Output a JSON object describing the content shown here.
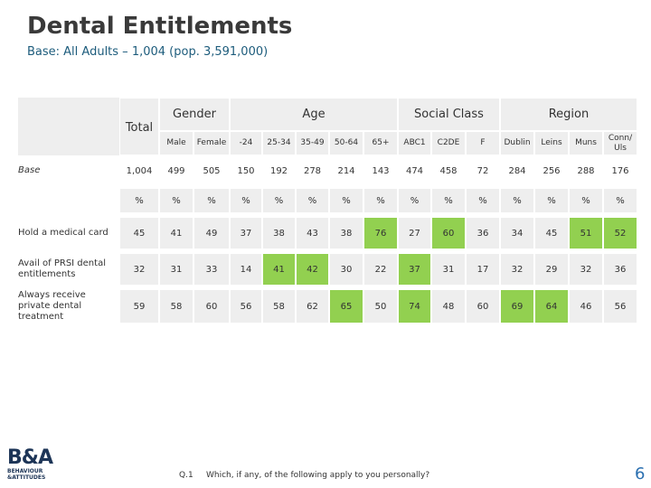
{
  "header": {
    "title": "Dental Entitlements",
    "subtitle": "Base: All Adults – 1,004 (pop. 3,591,000)"
  },
  "table": {
    "total_label": "Total",
    "groups": [
      {
        "label": "Gender",
        "span": 2
      },
      {
        "label": "Age",
        "span": 5
      },
      {
        "label": "Social Class",
        "span": 3
      },
      {
        "label": "Region",
        "span": 4
      }
    ],
    "columns": [
      "Male",
      "Female",
      "-24",
      "25-34",
      "35-49",
      "50-64",
      "65+",
      "ABC1",
      "C2DE",
      "F",
      "Dublin",
      "Leins",
      "Muns",
      "Conn/ Uls"
    ],
    "base": {
      "label": "Base",
      "values": [
        "1,004",
        499,
        505,
        150,
        192,
        278,
        214,
        143,
        474,
        458,
        72,
        284,
        256,
        288,
        176
      ]
    },
    "units": [
      "%",
      "%",
      "%",
      "%",
      "%",
      "%",
      "%",
      "%",
      "%",
      "%",
      "%",
      "%",
      "%",
      "%",
      "%"
    ],
    "highlight_color": "#92d050",
    "rows": [
      {
        "label": "Hold a medical card",
        "values": [
          45,
          41,
          49,
          37,
          38,
          43,
          38,
          76,
          27,
          60,
          36,
          34,
          45,
          51,
          52
        ],
        "highlighted": [
          false,
          false,
          false,
          false,
          false,
          false,
          false,
          true,
          false,
          true,
          false,
          false,
          false,
          true,
          true
        ]
      },
      {
        "label": "Avail of PRSI dental entitlements",
        "values": [
          32,
          31,
          33,
          14,
          41,
          42,
          30,
          22,
          37,
          31,
          17,
          32,
          29,
          32,
          36
        ],
        "highlighted": [
          false,
          false,
          false,
          false,
          true,
          true,
          false,
          false,
          true,
          false,
          false,
          false,
          false,
          false,
          false
        ]
      },
      {
        "label": "Always receive private dental treatment",
        "values": [
          59,
          58,
          60,
          56,
          58,
          62,
          65,
          50,
          74,
          48,
          60,
          69,
          64,
          46,
          56
        ],
        "highlighted": [
          false,
          false,
          false,
          false,
          false,
          false,
          true,
          false,
          true,
          false,
          false,
          true,
          true,
          false,
          false
        ]
      }
    ]
  },
  "footer": {
    "question_number": "Q.1",
    "question": "Which, if any, of the following apply to you personally?",
    "page": "6",
    "logo": {
      "mark": "B&A",
      "line1": "BEHAVIOUR",
      "line2": "&ATTITUDES"
    }
  }
}
